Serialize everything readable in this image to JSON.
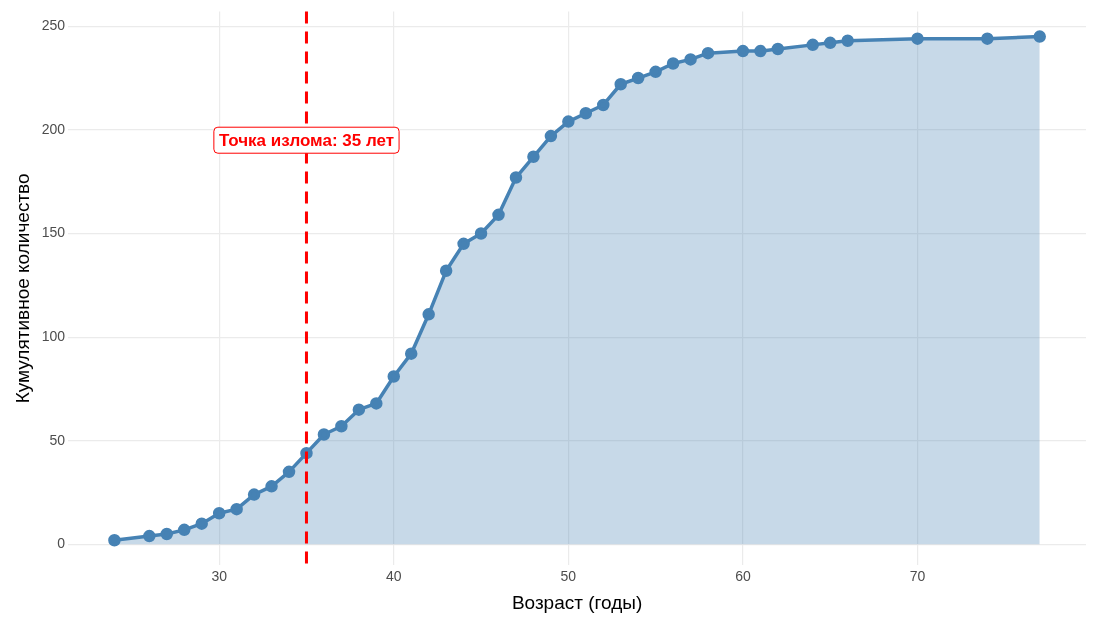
{
  "chart_data": {
    "type": "area",
    "xlabel": "Возраст (годы)",
    "ylabel": "Кумулятивное количество",
    "x": [
      24,
      26,
      27,
      28,
      29,
      30,
      31,
      32,
      33,
      34,
      35,
      36,
      37,
      38,
      39,
      40,
      41,
      42,
      43,
      44,
      45,
      46,
      47,
      48,
      49,
      50,
      51,
      52,
      53,
      54,
      55,
      56,
      57,
      58,
      60,
      61,
      62,
      64,
      65,
      66,
      70,
      74,
      77
    ],
    "series": [
      {
        "color": "#4682b4",
        "values": [
          2,
          4,
          5,
          7,
          10,
          15,
          17,
          24,
          28,
          35,
          44,
          53,
          57,
          65,
          68,
          81,
          92,
          111,
          132,
          145,
          150,
          159,
          177,
          187,
          197,
          204,
          208,
          212,
          222,
          225,
          228,
          232,
          234,
          237,
          238,
          238,
          239,
          241,
          242,
          243,
          244,
          244,
          245
        ]
      }
    ],
    "xlim": [
      21.35,
      79.65
    ],
    "xticks": [
      30,
      40,
      50,
      60,
      70
    ],
    "ylim": [
      -10.15,
      257.15
    ],
    "yticks": [
      0,
      50,
      100,
      150,
      200,
      250
    ],
    "ref_lines": [
      {
        "axis": "x",
        "value": 35,
        "color": "#ff0000",
        "line_style": "dashed"
      }
    ],
    "annotations": [
      {
        "text": "Точка излома: 35 лет",
        "x": 35,
        "y": 195
      }
    ],
    "grid": true,
    "legend": false,
    "marker": "circle",
    "line_style": "solid"
  }
}
